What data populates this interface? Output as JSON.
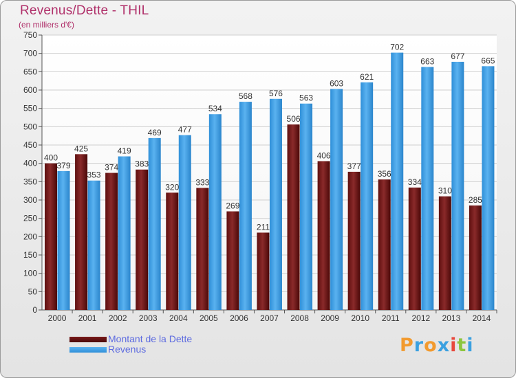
{
  "header": {
    "title": "Revenus/Dette - THIL",
    "subtitle": "(en milliers d'€)"
  },
  "legend": {
    "items": [
      {
        "label": "Montant de la Dette",
        "color": "#7a1a1a"
      },
      {
        "label": "Revenus",
        "color": "#3a9ee6"
      }
    ]
  },
  "brand": {
    "letters": [
      "P",
      "r",
      "o",
      "x",
      "i",
      "t",
      "i"
    ],
    "colors": [
      "#f29a2e",
      "#3aa0e0",
      "#f29a2e",
      "#3aa0e0",
      "#e8483c",
      "#8cc63e",
      "#3aa0e0"
    ]
  },
  "chart_data": {
    "type": "bar",
    "title": "Revenus/Dette - THIL",
    "subtitle": "(en milliers d'€)",
    "categories": [
      "2000",
      "2001",
      "2002",
      "2003",
      "2004",
      "2005",
      "2006",
      "2007",
      "2008",
      "2009",
      "2010",
      "2011",
      "2012",
      "2013",
      "2014"
    ],
    "series": [
      {
        "name": "Montant de la Dette",
        "color": "#7a1a1a",
        "values": [
          400,
          425,
          374,
          383,
          320,
          333,
          269,
          211,
          506,
          406,
          377,
          356,
          334,
          310,
          285
        ]
      },
      {
        "name": "Revenus",
        "color": "#3a9ee6",
        "values": [
          379,
          353,
          419,
          469,
          477,
          534,
          568,
          576,
          563,
          603,
          621,
          702,
          663,
          677,
          665
        ]
      }
    ],
    "ylim": [
      0,
      750
    ],
    "yticks": [
      0,
      50,
      100,
      150,
      200,
      250,
      300,
      350,
      400,
      450,
      500,
      550,
      600,
      650,
      700,
      750
    ],
    "grid": true,
    "legend_position": "bottom-left"
  }
}
